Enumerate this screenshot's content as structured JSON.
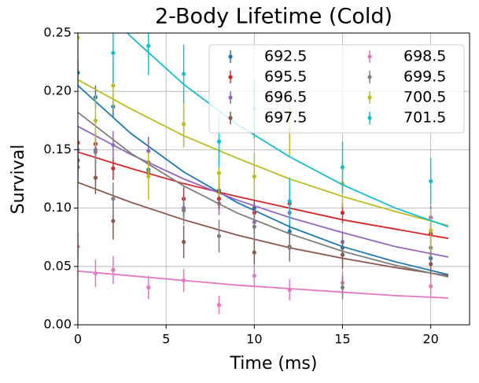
{
  "chart_data": {
    "type": "scatter",
    "title": "2-Body Lifetime (Cold)",
    "x_label": "Time (ms)",
    "y_label": "Survival",
    "x": [
      0,
      1,
      2,
      4,
      6,
      8,
      10,
      12,
      15,
      20
    ],
    "fit_x": [
      0,
      3,
      6,
      9,
      12,
      15,
      18,
      21
    ],
    "xlim": [
      0,
      22.2
    ],
    "ylim": [
      0,
      0.25
    ],
    "xticks": [
      0,
      5,
      10,
      15,
      20
    ],
    "yticks": [
      {
        "value": 0,
        "label": "0.00"
      },
      {
        "value": 0.05,
        "label": "0.05"
      },
      {
        "value": 0.1,
        "label": "0.10"
      },
      {
        "value": 0.15,
        "label": "0.15"
      },
      {
        "value": 0.2,
        "label": "0.20"
      },
      {
        "value": 0.25,
        "label": "0.25"
      }
    ],
    "grid": true,
    "legend": "upper right",
    "legend_columns": 2,
    "series": [
      {
        "name": "692.5",
        "color": "#1f77b4",
        "values": [
          0.216,
          0.195,
          0.187,
          0.133,
          0.1,
          0.115,
          0.1,
          0.08,
          0.066,
          0.057
        ],
        "errors": [
          0.012,
          0.01,
          0.01,
          0.008,
          0.008,
          0.008,
          0.008,
          0.007,
          0.007,
          0.006
        ],
        "fit": [
          0.205,
          0.164,
          0.131,
          0.105,
          0.084,
          0.067,
          0.054,
          0.043
        ]
      },
      {
        "name": "695.5",
        "color": "#d62728",
        "values": [
          0.156,
          0.155,
          0.134,
          0.139,
          0.108,
          0.108,
          0.096,
          0.104,
          0.096,
          0.078
        ],
        "errors": [
          0.012,
          0.01,
          0.01,
          0.01,
          0.01,
          0.01,
          0.009,
          0.009,
          0.009,
          0.009
        ],
        "fit": [
          0.148,
          0.134,
          0.121,
          0.11,
          0.1,
          0.09,
          0.082,
          0.074
        ]
      },
      {
        "name": "696.5",
        "color": "#9467bd",
        "values": [
          0.15,
          0.15,
          0.154,
          0.149,
          0.1,
          0.104,
          0.088,
          0.096,
          0.071,
          0.092
        ],
        "errors": [
          0.012,
          0.012,
          0.012,
          0.012,
          0.01,
          0.01,
          0.01,
          0.01,
          0.009,
          0.01
        ],
        "fit": [
          0.17,
          0.146,
          0.125,
          0.107,
          0.092,
          0.079,
          0.067,
          0.058
        ]
      },
      {
        "name": "697.5",
        "color": "#8c564b",
        "values": [
          0.141,
          0.126,
          0.089,
          0.13,
          0.071,
          0.114,
          0.062,
          0.067,
          0.06,
          0.052
        ],
        "errors": [
          0.014,
          0.014,
          0.016,
          0.014,
          0.014,
          0.014,
          0.012,
          0.012,
          0.012,
          0.012
        ],
        "fit": [
          0.122,
          0.105,
          0.09,
          0.077,
          0.066,
          0.057,
          0.049,
          0.042
        ]
      },
      {
        "name": "698.5",
        "color": "#e377c2",
        "values": [
          0.067,
          0.044,
          0.047,
          0.032,
          0.038,
          0.017,
          0.042,
          0.03,
          0.036,
          0.033
        ],
        "errors": [
          0.012,
          0.012,
          0.012,
          0.01,
          0.01,
          0.008,
          0.01,
          0.009,
          0.01,
          0.01
        ],
        "fit": [
          0.046,
          0.042,
          0.038,
          0.034,
          0.031,
          0.028,
          0.025,
          0.023
        ]
      },
      {
        "name": "699.5",
        "color": "#7f7f7f",
        "values": [
          0.135,
          0.148,
          0.108,
          0.131,
          0.098,
          0.076,
          0.084,
          0.066,
          0.032,
          0.066
        ],
        "errors": [
          0.014,
          0.014,
          0.014,
          0.014,
          0.012,
          0.014,
          0.012,
          0.012,
          0.01,
          0.012
        ],
        "fit": [
          0.182,
          0.147,
          0.119,
          0.096,
          0.078,
          0.063,
          0.051,
          0.041
        ]
      },
      {
        "name": "700.5",
        "color": "#bcbd22",
        "values": [
          0.246,
          0.175,
          0.205,
          0.127,
          0.172,
          0.13,
          0.127,
          0.167,
          0.121,
          0.081
        ],
        "errors": [
          0.02,
          0.022,
          0.02,
          0.02,
          0.02,
          0.02,
          0.02,
          0.022,
          0.02,
          0.018
        ],
        "fit": [
          0.21,
          0.185,
          0.162,
          0.143,
          0.125,
          0.11,
          0.097,
          0.085
        ]
      },
      {
        "name": "701.5",
        "color": "#17becf",
        "values": [
          null,
          null,
          0.233,
          0.239,
          0.215,
          0.157,
          0.185,
          0.106,
          0.135,
          0.123
        ],
        "errors": [
          null,
          null,
          0.026,
          0.025,
          0.025,
          0.022,
          0.025,
          0.02,
          0.022,
          0.02
        ],
        "fit": [
          0.296,
          0.247,
          0.206,
          0.172,
          0.144,
          0.12,
          0.1,
          0.084
        ]
      }
    ]
  }
}
